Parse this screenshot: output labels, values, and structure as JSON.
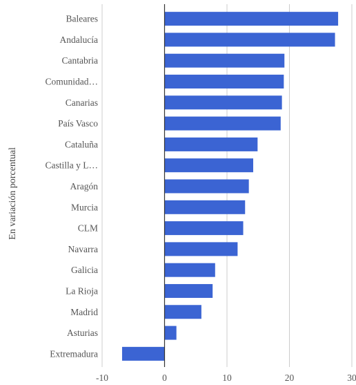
{
  "chart_data": {
    "type": "bar",
    "orientation": "horizontal",
    "ylabel": "En variación porcentual",
    "categories": [
      "Baleares",
      "Andalucía",
      "Cantabria",
      "Comunidad…",
      "Canarias",
      "País Vasco",
      "Cataluña",
      "Castilla y L…",
      "Aragón",
      "Murcia",
      "CLM",
      "Navarra",
      "Galicia",
      "La Rioja",
      "Madrid",
      "Asturias",
      "Extremadura"
    ],
    "values": [
      27.8,
      27.3,
      19.2,
      19.1,
      18.8,
      18.6,
      14.9,
      14.2,
      13.5,
      12.9,
      12.6,
      11.7,
      8.1,
      7.7,
      5.9,
      1.9,
      -6.8
    ],
    "xlim": [
      -10,
      30
    ],
    "xticks": [
      -10,
      0,
      10,
      20,
      30
    ],
    "grid": true,
    "bar_color": "#3b64d3",
    "grid_color": "#cccccc",
    "zero_line_color": "#333333"
  }
}
